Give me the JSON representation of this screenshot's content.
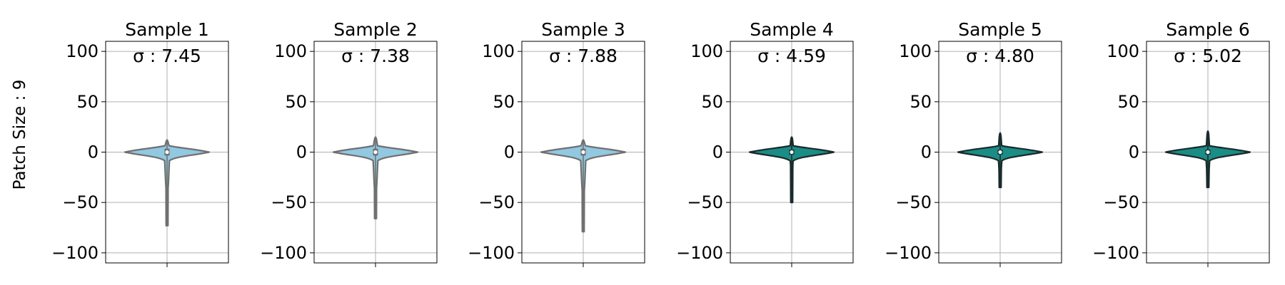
{
  "chart_data": {
    "type": "violin",
    "ylabel": "Patch Size : 9",
    "ylim": [
      -110,
      110
    ],
    "yticks": [
      -100,
      -50,
      0,
      50,
      100
    ],
    "ytick_labels": [
      "−100",
      "−50",
      "0",
      "50",
      "100"
    ],
    "grid": true,
    "colors": {
      "light_fill": "#92c8e0",
      "light_edge": "#707070",
      "dark_fill": "#1b8c86",
      "dark_edge": "#1a2a2a",
      "grid": "#b0b0b0"
    },
    "panels": [
      {
        "title": "Sample 1",
        "sigma_label": "σ : 7.45",
        "sigma": 7.45,
        "style": "light",
        "whisker_min": -73,
        "whisker_max": 12,
        "q1": -2,
        "median": 0,
        "q3": 2,
        "body_half_width": 59,
        "body_range": [
          -30,
          12
        ]
      },
      {
        "title": "Sample 2",
        "sigma_label": "σ : 7.38",
        "sigma": 7.38,
        "style": "light",
        "whisker_min": -66,
        "whisker_max": 15,
        "q1": -2,
        "median": 0,
        "q3": 2,
        "body_half_width": 59,
        "body_range": [
          -30,
          15
        ]
      },
      {
        "title": "Sample 3",
        "sigma_label": "σ : 7.88",
        "sigma": 7.88,
        "style": "light",
        "whisker_min": -79,
        "whisker_max": 12,
        "q1": -2,
        "median": 0,
        "q3": 2,
        "body_half_width": 59,
        "body_range": [
          -32,
          12
        ]
      },
      {
        "title": "Sample 4",
        "sigma_label": "σ : 4.59",
        "sigma": 4.59,
        "style": "dark",
        "whisker_min": -50,
        "whisker_max": 15,
        "q1": -1,
        "median": 0,
        "q3": 1,
        "body_half_width": 59,
        "body_range": [
          -12,
          15
        ]
      },
      {
        "title": "Sample 5",
        "sigma_label": "σ : 4.80",
        "sigma": 4.8,
        "style": "dark",
        "whisker_min": -35,
        "whisker_max": 19,
        "q1": -1,
        "median": 0,
        "q3": 1,
        "body_half_width": 59,
        "body_range": [
          -18,
          19
        ]
      },
      {
        "title": "Sample 6",
        "sigma_label": "σ : 5.02",
        "sigma": 5.02,
        "style": "dark",
        "whisker_min": -35,
        "whisker_max": 21,
        "q1": -1,
        "median": 0,
        "q3": 1,
        "body_half_width": 59,
        "body_range": [
          -20,
          21
        ]
      }
    ]
  }
}
